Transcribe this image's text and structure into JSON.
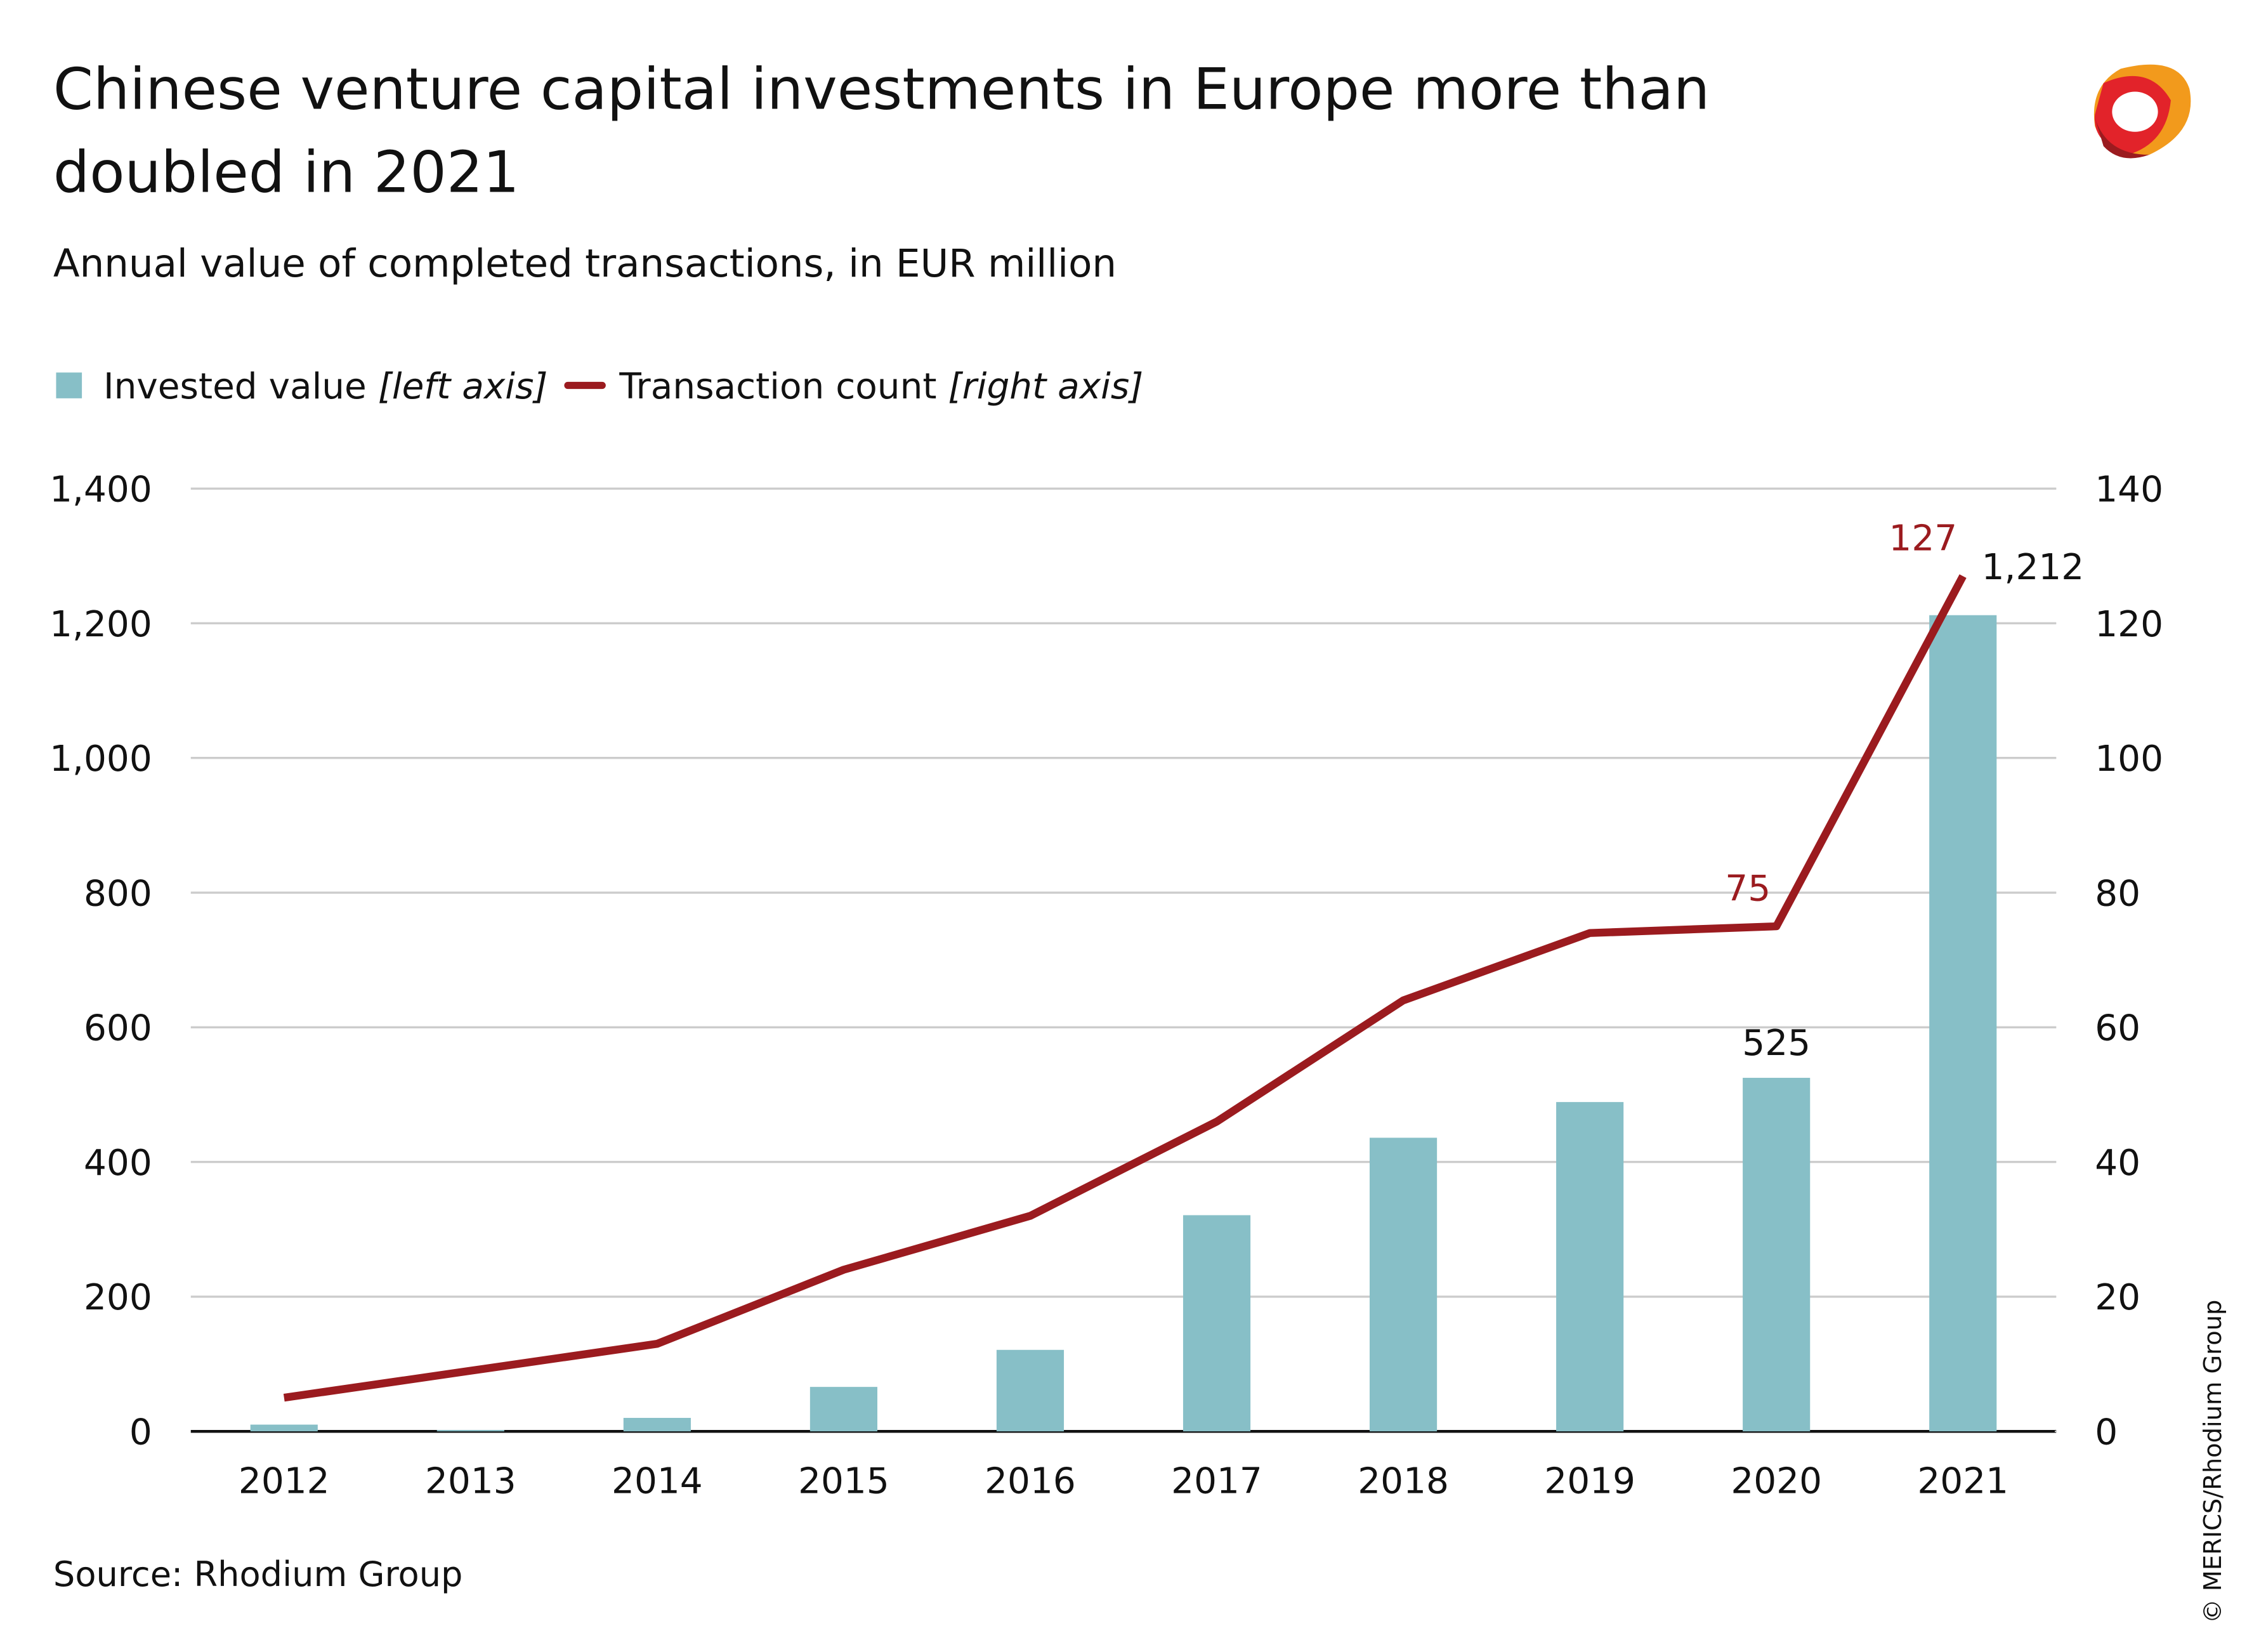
{
  "chart_data": {
    "type": "bar_line",
    "title": [
      "Chinese venture capital investments in Europe more than",
      "doubled in 2021"
    ],
    "subtitle": "Annual value of completed transactions, in EUR million",
    "source": "Source: Rhodium Group",
    "credit": "© MERICS/Rhodium Group",
    "categories": [
      "2012",
      "2013",
      "2014",
      "2015",
      "2016",
      "2017",
      "2018",
      "2019",
      "2020",
      "2021"
    ],
    "series": [
      {
        "name": "Invested value",
        "legend_note": "[left axis]",
        "type": "bar",
        "color": "#87bfc7",
        "values": [
          10,
          2,
          20,
          66,
          121,
          321,
          436,
          489,
          525,
          1212
        ],
        "value_labels": [
          null,
          null,
          null,
          null,
          null,
          null,
          null,
          null,
          "525",
          "1,212"
        ]
      },
      {
        "name": "Transaction count",
        "legend_note": "[right axis]",
        "type": "line",
        "axis": "y2",
        "color": "#9b1b1f",
        "values": [
          5,
          9,
          13,
          24,
          32,
          46,
          64,
          74,
          75,
          127
        ],
        "value_labels": [
          null,
          null,
          null,
          null,
          null,
          null,
          null,
          null,
          "75",
          "127"
        ]
      }
    ],
    "ylim": [
      0,
      1400
    ],
    "yticks": [
      0,
      200,
      400,
      600,
      800,
      {
        "value": 1000,
        "label": "1,000"
      },
      {
        "value": 1200,
        "label": "1,200"
      },
      {
        "value": 1400,
        "label": "1,400"
      }
    ],
    "y2lim": [
      0,
      140
    ],
    "y2ticks": [
      0,
      20,
      40,
      60,
      80,
      100,
      120,
      140
    ],
    "grid": true
  }
}
